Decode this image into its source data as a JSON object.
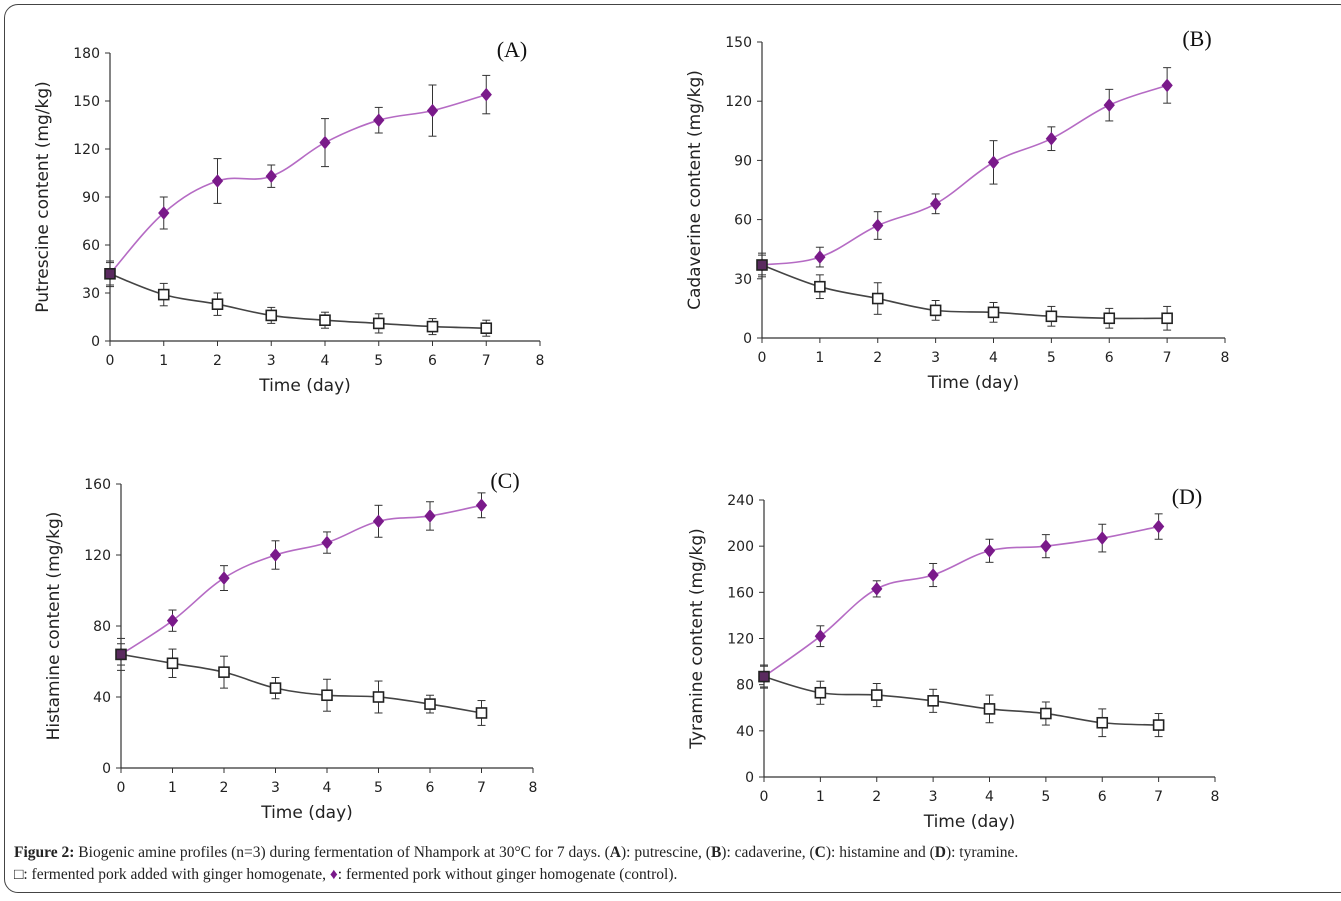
{
  "figure": {
    "caption": {
      "figure_label": "Figure 2:",
      "line1_text": " Biogenic amine profiles (n=3) during fermentation of Nhampork at 30°C for 7 days. (",
      "A": "A",
      "A_desc": "): putrescine, (",
      "B": "B",
      "B_desc": "): cadaverine, (",
      "C": "C",
      "C_desc": "): histamine and (",
      "D": "D",
      "D_desc": "): tyramine.",
      "legend_square_symbol": "□",
      "legend_square_text": ": fermented pork added with ginger homogenate, ",
      "legend_diamond_symbol": "♦",
      "legend_diamond_text": ": fermented pork without ginger homogenate (control)."
    }
  },
  "chart_data": [
    {
      "type": "line",
      "panel_label": "(A)",
      "xlabel": "Time (day)",
      "ylabel": "Putrescine content (mg/kg)",
      "x": [
        0,
        1,
        2,
        3,
        4,
        5,
        6,
        7
      ],
      "xlim": [
        0,
        8
      ],
      "xticks": [
        0,
        1,
        2,
        3,
        4,
        5,
        6,
        7,
        8
      ],
      "ylim": [
        0,
        180
      ],
      "yticks": [
        0,
        30,
        60,
        90,
        120,
        150,
        180
      ],
      "series": [
        {
          "marker": "diamond",
          "color": "#7a1a8a",
          "values": [
            42,
            80,
            100,
            103,
            124,
            138,
            144,
            154
          ],
          "errors": [
            8,
            10,
            14,
            7,
            15,
            8,
            16,
            12
          ]
        },
        {
          "marker": "square",
          "color": "#333333",
          "values": [
            42,
            29,
            23,
            16,
            13,
            11,
            9,
            8
          ],
          "errors": [
            7,
            7,
            7,
            5,
            5,
            6,
            5,
            5
          ]
        }
      ]
    },
    {
      "type": "line",
      "panel_label": "(B)",
      "xlabel": "Time (day)",
      "ylabel": "Cadaverine content (mg/kg)",
      "x": [
        0,
        1,
        2,
        3,
        4,
        5,
        6,
        7
      ],
      "xlim": [
        0,
        8
      ],
      "xticks": [
        0,
        1,
        2,
        3,
        4,
        5,
        6,
        7,
        8
      ],
      "ylim": [
        0,
        150
      ],
      "yticks": [
        0,
        30,
        60,
        90,
        120,
        150
      ],
      "series": [
        {
          "marker": "diamond",
          "color": "#7a1a8a",
          "values": [
            37,
            41,
            57,
            68,
            89,
            101,
            118,
            128
          ],
          "errors": [
            5,
            5,
            7,
            5,
            11,
            6,
            8,
            9
          ]
        },
        {
          "marker": "square",
          "color": "#333333",
          "values": [
            37,
            26,
            20,
            14,
            13,
            11,
            10,
            10
          ],
          "errors": [
            6,
            6,
            8,
            5,
            5,
            5,
            5,
            6
          ]
        }
      ]
    },
    {
      "type": "line",
      "panel_label": "(C)",
      "xlabel": "Time (day)",
      "ylabel": "Histamine content (mg/kg)",
      "x": [
        0,
        1,
        2,
        3,
        4,
        5,
        6,
        7
      ],
      "xlim": [
        0,
        8
      ],
      "xticks": [
        0,
        1,
        2,
        3,
        4,
        5,
        6,
        7,
        8
      ],
      "ylim": [
        0,
        160
      ],
      "yticks": [
        0,
        40,
        80,
        120,
        160
      ],
      "series": [
        {
          "marker": "diamond",
          "color": "#7a1a8a",
          "values": [
            64,
            83,
            107,
            120,
            127,
            139,
            142,
            148
          ],
          "errors": [
            6,
            6,
            7,
            8,
            6,
            9,
            8,
            7
          ]
        },
        {
          "marker": "square",
          "color": "#333333",
          "values": [
            64,
            59,
            54,
            45,
            41,
            40,
            36,
            31
          ],
          "errors": [
            9,
            8,
            9,
            6,
            9,
            9,
            5,
            7
          ]
        }
      ]
    },
    {
      "type": "line",
      "panel_label": "(D)",
      "xlabel": "Time (day)",
      "ylabel": "Tyramine content (mg/kg)",
      "x": [
        0,
        1,
        2,
        3,
        4,
        5,
        6,
        7
      ],
      "xlim": [
        0,
        8
      ],
      "xticks": [
        0,
        1,
        2,
        3,
        4,
        5,
        6,
        7,
        8
      ],
      "ylim": [
        0,
        240
      ],
      "yticks": [
        0,
        40,
        80,
        120,
        160,
        200,
        240
      ],
      "series": [
        {
          "marker": "diamond",
          "color": "#7a1a8a",
          "values": [
            87,
            122,
            163,
            175,
            196,
            200,
            207,
            217
          ],
          "errors": [
            9,
            9,
            7,
            10,
            10,
            10,
            12,
            11
          ]
        },
        {
          "marker": "square",
          "color": "#333333",
          "values": [
            87,
            73,
            71,
            66,
            59,
            55,
            47,
            45
          ],
          "errors": [
            10,
            10,
            10,
            10,
            12,
            10,
            12,
            10
          ]
        }
      ]
    }
  ]
}
